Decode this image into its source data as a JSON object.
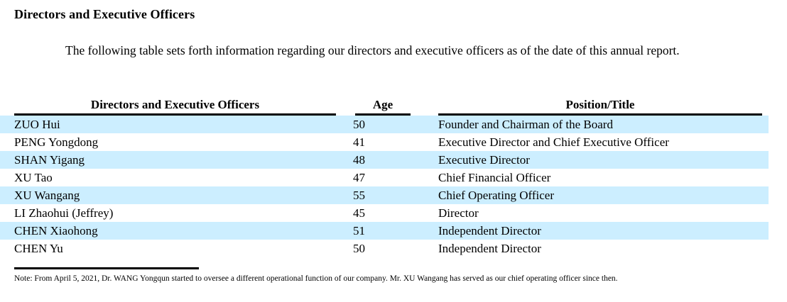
{
  "document": {
    "heading": "Directors and Executive Officers",
    "intro": "The following table sets forth information regarding our directors and executive officers as of the date of this annual report.",
    "note": "Note: From April 5, 2021, Dr. WANG Yongqun started to oversee a different operational function of our company. Mr. XU Wangang has served as our chief operating officer since then."
  },
  "table": {
    "highlight_color": "#cceeff",
    "columns": [
      "Directors and Executive Officers",
      "Age",
      "Position/Title"
    ],
    "rows": [
      {
        "name": "ZUO Hui",
        "age": "50",
        "position": "Founder and Chairman of the Board"
      },
      {
        "name": "PENG Yongdong",
        "age": "41",
        "position": "Executive Director and Chief Executive Officer"
      },
      {
        "name": "SHAN Yigang",
        "age": "48",
        "position": "Executive Director"
      },
      {
        "name": "XU Tao",
        "age": "47",
        "position": "Chief Financial Officer"
      },
      {
        "name": "XU Wangang",
        "age": "55",
        "position": "Chief Operating Officer"
      },
      {
        "name": "LI Zhaohui (Jeffrey)",
        "age": "45",
        "position": "Director"
      },
      {
        "name": "CHEN Xiaohong",
        "age": "51",
        "position": "Independent Director"
      },
      {
        "name": "CHEN Yu",
        "age": "50",
        "position": "Independent Director"
      }
    ]
  }
}
